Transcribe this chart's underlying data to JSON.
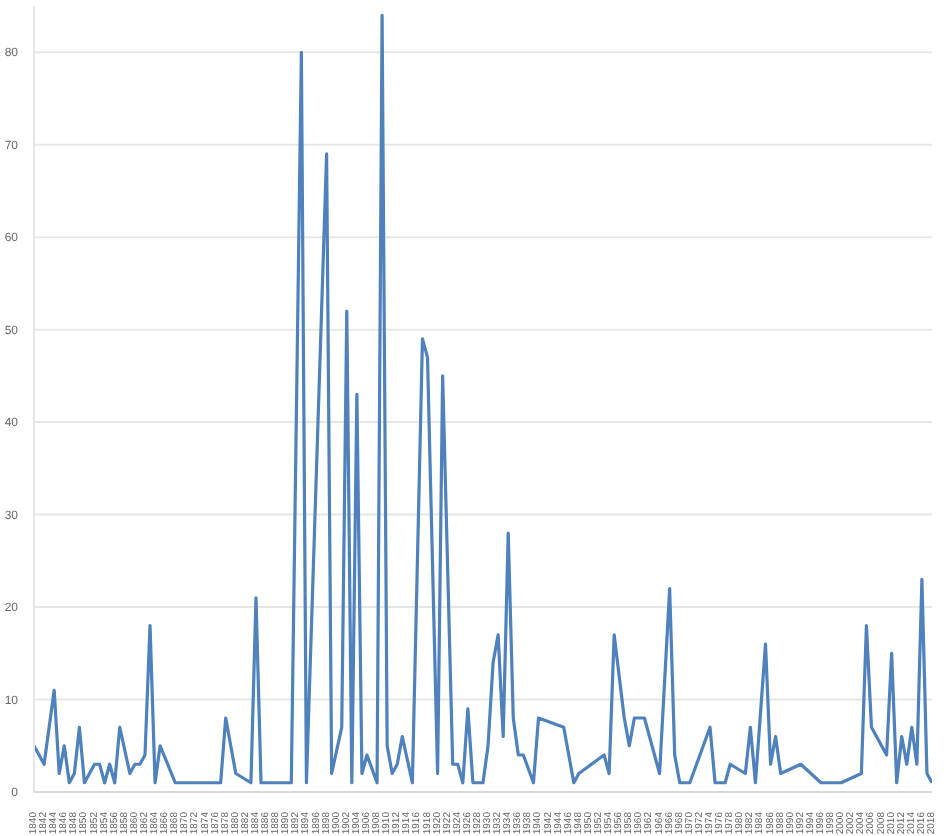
{
  "chart_data": {
    "type": "line",
    "x": [
      1840,
      1842,
      1844,
      1845,
      1846,
      1847,
      1848,
      1849,
      1850,
      1852,
      1853,
      1854,
      1855,
      1856,
      1857,
      1859,
      1860,
      1861,
      1862,
      1863,
      1864,
      1865,
      1868,
      1877,
      1878,
      1880,
      1883,
      1884,
      1885,
      1891,
      1893,
      1894,
      1898,
      1899,
      1901,
      1902,
      1903,
      1904,
      1905,
      1906,
      1908,
      1909,
      1910,
      1911,
      1912,
      1913,
      1915,
      1917,
      1918,
      1920,
      1921,
      1923,
      1924,
      1925,
      1926,
      1927,
      1929,
      1930,
      1931,
      1932,
      1933,
      1934,
      1935,
      1936,
      1937,
      1939,
      1940,
      1945,
      1947,
      1948,
      1953,
      1954,
      1955,
      1957,
      1958,
      1959,
      1961,
      1964,
      1966,
      1967,
      1968,
      1970,
      1974,
      1975,
      1977,
      1978,
      1981,
      1982,
      1983,
      1985,
      1986,
      1987,
      1988,
      1992,
      1996,
      2000,
      2004,
      2005,
      2006,
      2009,
      2010,
      2011,
      2012,
      2013,
      2014,
      2015,
      2016,
      2017,
      2018
    ],
    "series": [
      {
        "color": "#4f81bd",
        "values": [
          5,
          3,
          11,
          2,
          5,
          1,
          2,
          7,
          1,
          3,
          3,
          1,
          3,
          1,
          7,
          2,
          3,
          3,
          4,
          18,
          1,
          5,
          1,
          1,
          8,
          2,
          1,
          21,
          1,
          1,
          80,
          1,
          69,
          2,
          7,
          52,
          1,
          43,
          2,
          4,
          1,
          84,
          5,
          2,
          3,
          6,
          1,
          49,
          47,
          2,
          45,
          3,
          3,
          1,
          9,
          1,
          1,
          5,
          14,
          17,
          6,
          28,
          8,
          4,
          4,
          1,
          8,
          7,
          1,
          2,
          4,
          2,
          17,
          8,
          5,
          8,
          8,
          2,
          22,
          4,
          1,
          1,
          7,
          1,
          1,
          3,
          2,
          7,
          1,
          16,
          3,
          6,
          2,
          3,
          1,
          1,
          2,
          18,
          7,
          4,
          15,
          1,
          6,
          3,
          7,
          3,
          23,
          2,
          1
        ]
      }
    ],
    "xlim": [
      1840,
      2018
    ],
    "xticks": [
      1840,
      1842,
      1844,
      1846,
      1848,
      1850,
      1852,
      1854,
      1856,
      1858,
      1860,
      1862,
      1864,
      1866,
      1868,
      1870,
      1872,
      1874,
      1876,
      1878,
      1880,
      1882,
      1884,
      1886,
      1888,
      1890,
      1892,
      1894,
      1896,
      1898,
      1900,
      1902,
      1904,
      1906,
      1908,
      1910,
      1912,
      1914,
      1916,
      1918,
      1920,
      1922,
      1924,
      1926,
      1928,
      1930,
      1932,
      1934,
      1936,
      1938,
      1940,
      1942,
      1944,
      1946,
      1948,
      1950,
      1952,
      1954,
      1956,
      1958,
      1960,
      1962,
      1964,
      1966,
      1968,
      1970,
      1972,
      1974,
      1976,
      1978,
      1980,
      1982,
      1984,
      1986,
      1988,
      1990,
      1992,
      1994,
      1996,
      1998,
      2000,
      2002,
      2004,
      2006,
      2008,
      2010,
      2012,
      2014,
      2016,
      2018
    ],
    "ylim": [
      0,
      85
    ],
    "yticks": [
      0,
      10,
      20,
      30,
      40,
      50,
      60,
      70,
      80
    ],
    "grid": "y",
    "marker": "none",
    "line_style": "solid"
  }
}
